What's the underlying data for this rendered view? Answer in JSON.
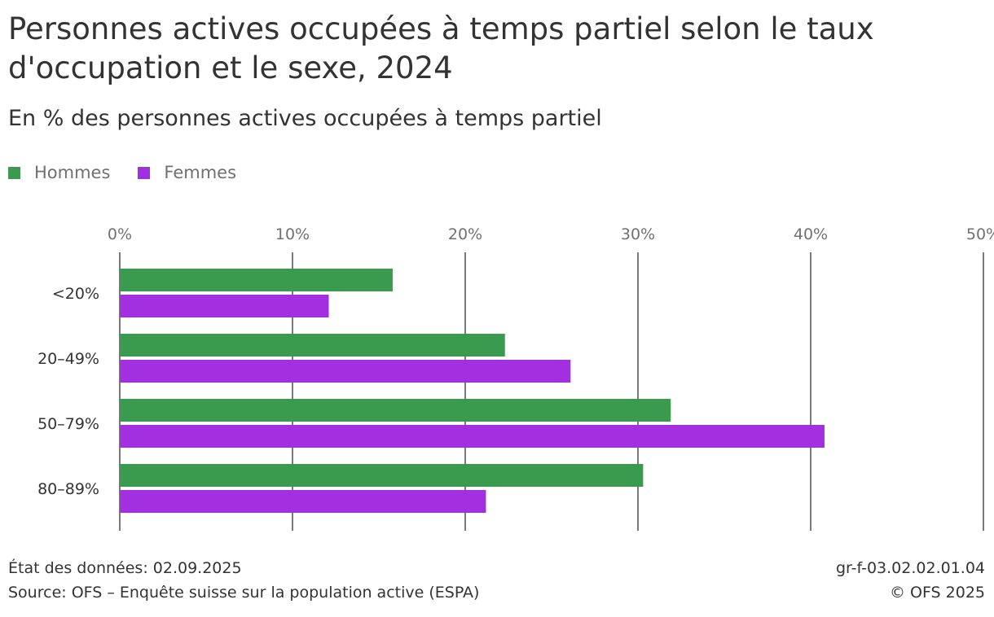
{
  "title": "Personnes actives occupées à temps partiel selon le taux d'occupation et le sexe, 2024",
  "subtitle": "En % des personnes actives occupées à temps partiel",
  "colors": {
    "hommes": "#3a9a4d",
    "femmes": "#a330e0",
    "grid": "#7a7a7a"
  },
  "legend": {
    "items": [
      {
        "label": "Hommes"
      },
      {
        "label": "Femmes"
      }
    ]
  },
  "chart_data": {
    "type": "bar",
    "orientation": "horizontal",
    "categories": [
      "<20%",
      "20–49%",
      "50–79%",
      "80–89%"
    ],
    "series": [
      {
        "name": "Hommes",
        "values": [
          15.8,
          22.3,
          31.9,
          30.3
        ]
      },
      {
        "name": "Femmes",
        "values": [
          12.1,
          26.1,
          40.8,
          21.2
        ]
      }
    ],
    "xlim": [
      0,
      50
    ],
    "xticks": [
      "0%",
      "10%",
      "20%",
      "30%",
      "40%",
      "50%"
    ],
    "tick_values": [
      0,
      10,
      20,
      30,
      40,
      50
    ],
    "grid": true,
    "legend_position": "top-left",
    "xlabel": "",
    "ylabel": ""
  },
  "footer": {
    "date_label": "État des données: 02.09.2025",
    "source": "Source: OFS – Enquête suisse sur la population active (ESPA)",
    "code": "gr-f-03.02.02.01.04",
    "copyright": "© OFS 2025"
  }
}
